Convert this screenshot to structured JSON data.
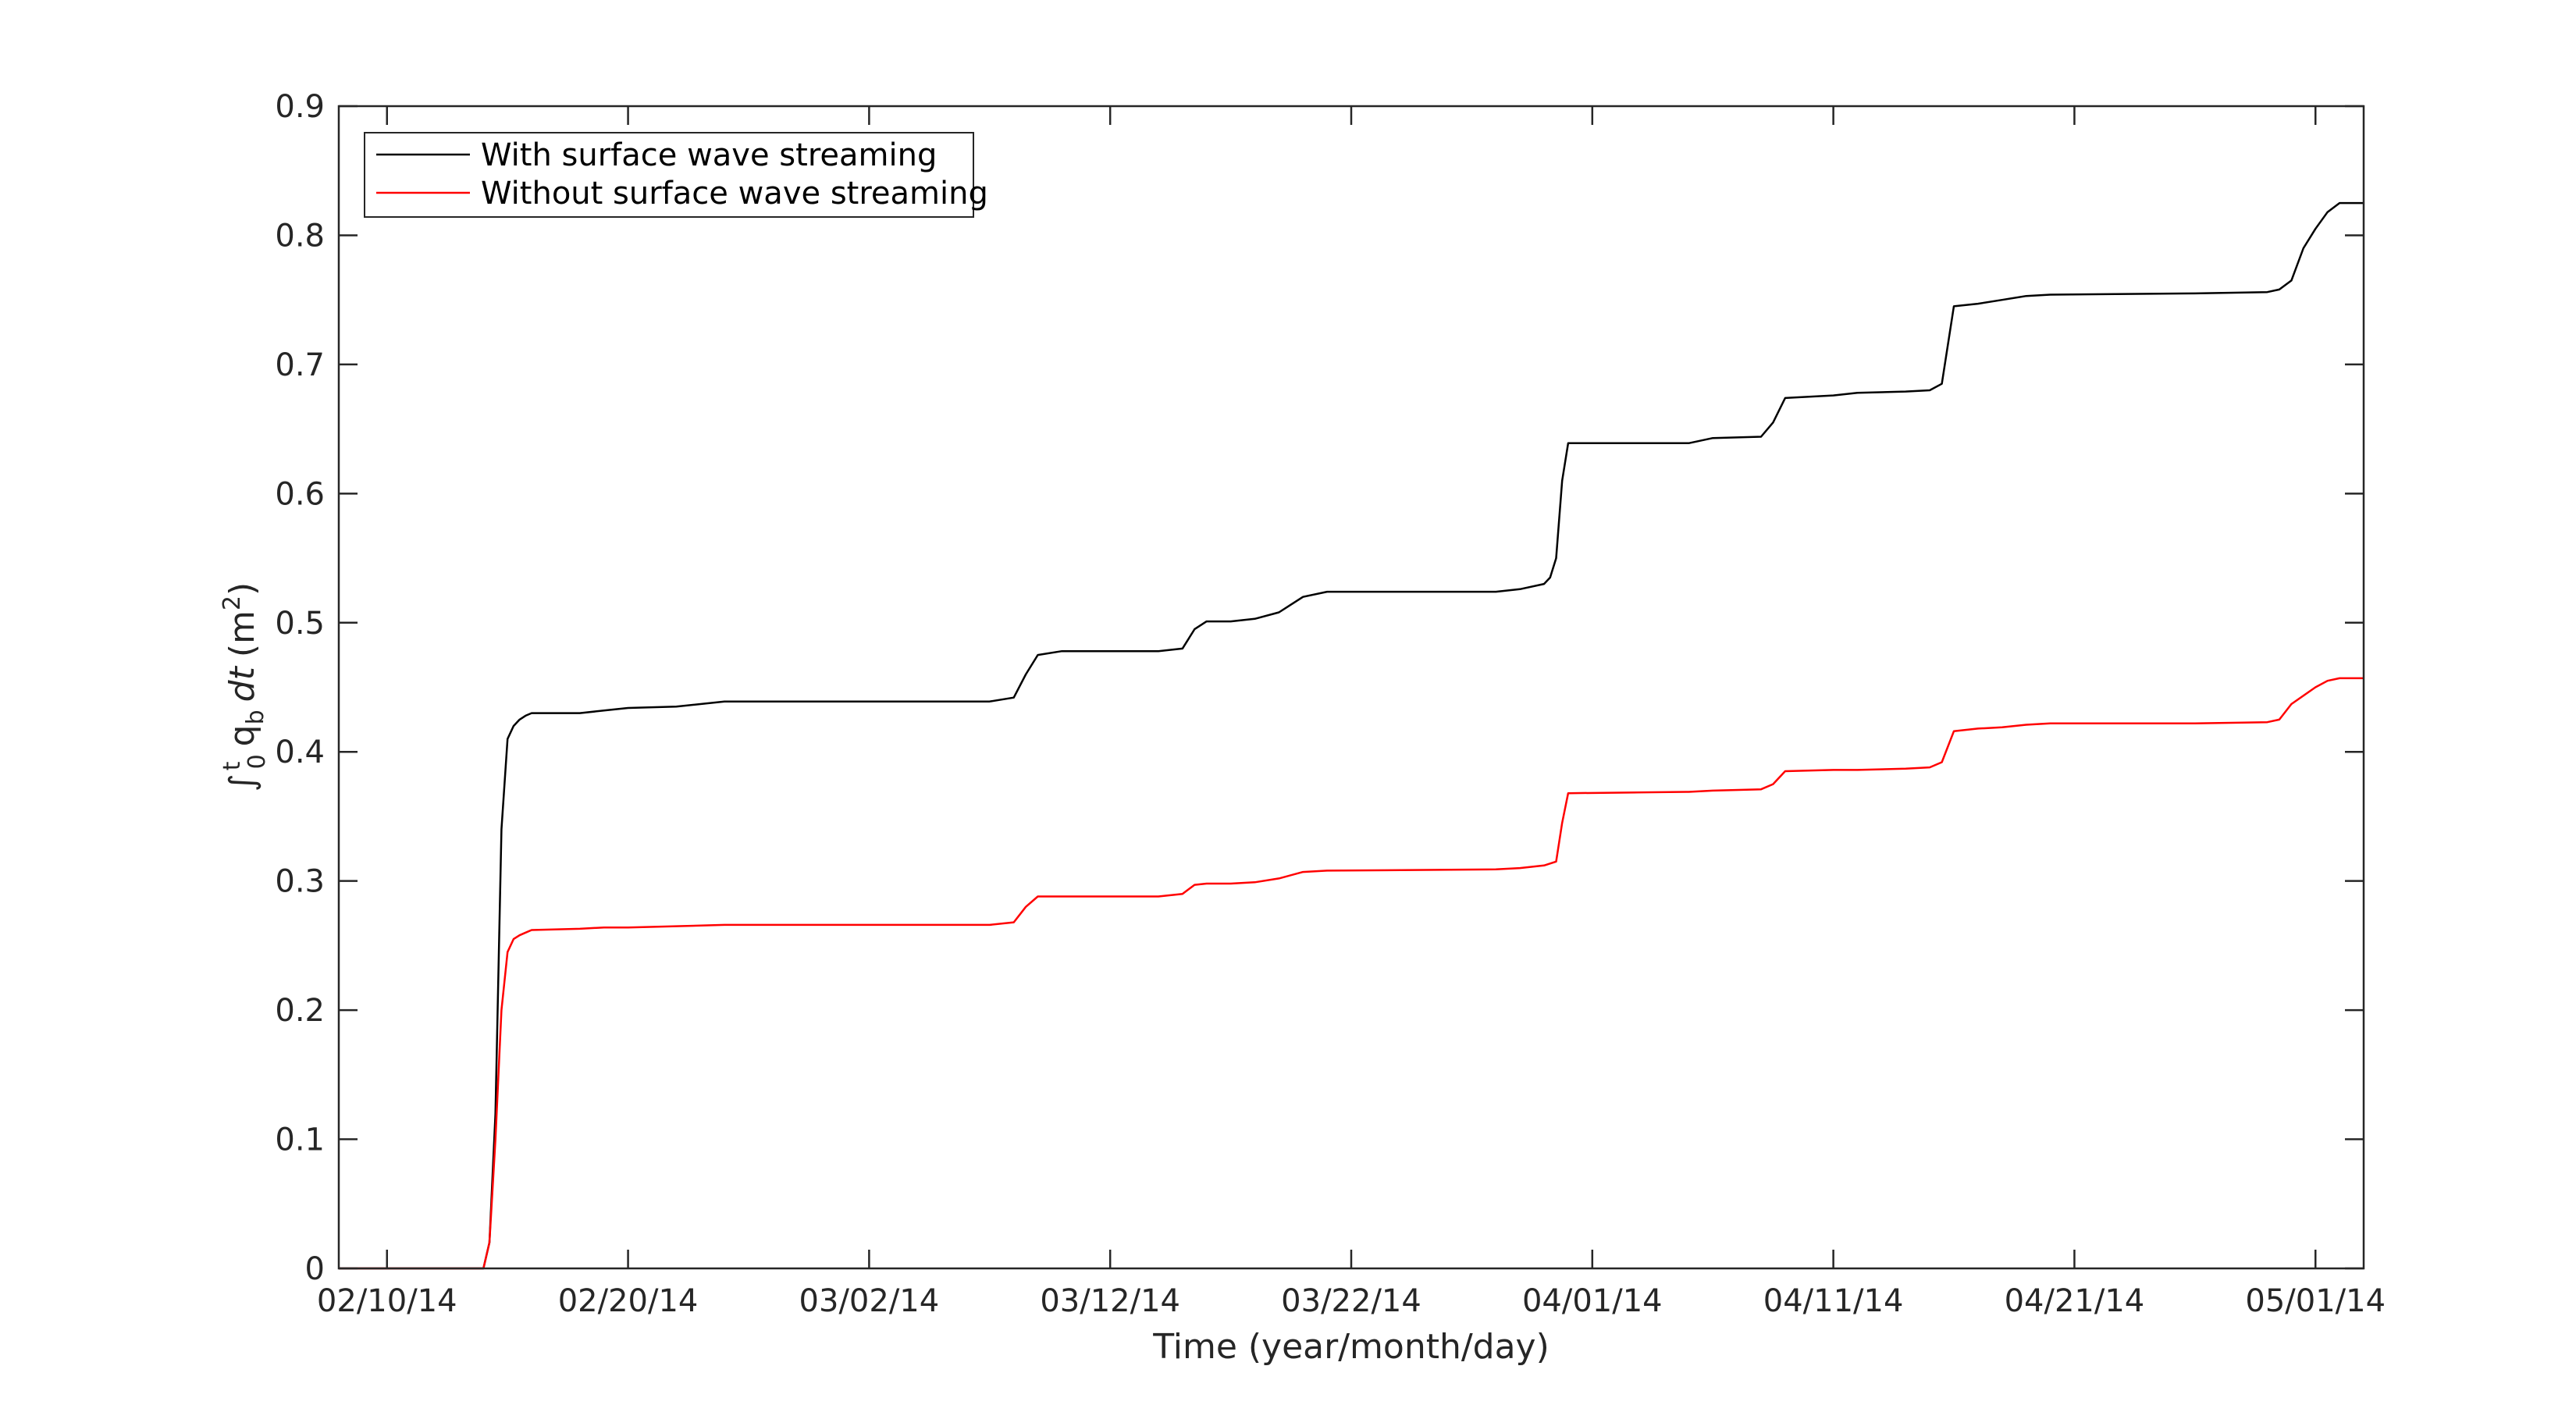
{
  "chart_data": {
    "type": "line",
    "xlabel": "Time (year/month/day)",
    "ylabel": {
      "integral": "∫",
      "upper": "t",
      "lower": "0",
      "q": "q",
      "q_sub": "b",
      "dt": "dt",
      "unit_open": "(m",
      "unit_sup": "2",
      "unit_close": ")"
    },
    "xlim": [
      "2014-02-08",
      "2014-05-03"
    ],
    "ylim": [
      0,
      0.9
    ],
    "grid": false,
    "x_ticks": [
      "2014-02-10",
      "2014-02-20",
      "2014-03-02",
      "2014-03-12",
      "2014-03-22",
      "2014-04-01",
      "2014-04-11",
      "2014-04-21",
      "2014-05-01"
    ],
    "x_tick_labels": [
      "02/10/14",
      "02/20/14",
      "03/02/14",
      "03/12/14",
      "03/22/14",
      "04/01/14",
      "04/11/14",
      "04/21/14",
      "05/01/14"
    ],
    "y_ticks": [
      0,
      0.1,
      0.2,
      0.3,
      0.4,
      0.5,
      0.6,
      0.7,
      0.8,
      0.9
    ],
    "y_tick_labels": [
      "0",
      "0.1",
      "0.2",
      "0.3",
      "0.4",
      "0.5",
      "0.6",
      "0.7",
      "0.8",
      "0.9"
    ],
    "legend_position": "top-left",
    "series": [
      {
        "name": "With surface wave streaming",
        "color": "#000000",
        "x": [
          "2014-02-08",
          "2014-02-10",
          "2014-02-12",
          "2014-02-14",
          "2014-02-14T06:00",
          "2014-02-14T12:00",
          "2014-02-14T18:00",
          "2014-02-15",
          "2014-02-15T06:00",
          "2014-02-15T12:00",
          "2014-02-15T18:00",
          "2014-02-16",
          "2014-02-16T12:00",
          "2014-02-17",
          "2014-02-18",
          "2014-02-19",
          "2014-02-20",
          "2014-02-22",
          "2014-02-24",
          "2014-03-01",
          "2014-03-07",
          "2014-03-08",
          "2014-03-08T12:00",
          "2014-03-09",
          "2014-03-10",
          "2014-03-14",
          "2014-03-15",
          "2014-03-15T12:00",
          "2014-03-16",
          "2014-03-17",
          "2014-03-18",
          "2014-03-19",
          "2014-03-20",
          "2014-03-21",
          "2014-03-28",
          "2014-03-29",
          "2014-03-30",
          "2014-03-30T06:00",
          "2014-03-30T12:00",
          "2014-03-30T18:00",
          "2014-03-31",
          "2014-04-05",
          "2014-04-06",
          "2014-04-08",
          "2014-04-08T12:00",
          "2014-04-09",
          "2014-04-11",
          "2014-04-12",
          "2014-04-14",
          "2014-04-15",
          "2014-04-15T12:00",
          "2014-04-16",
          "2014-04-17",
          "2014-04-18",
          "2014-04-19",
          "2014-04-20",
          "2014-04-26",
          "2014-04-29",
          "2014-04-29T12:00",
          "2014-04-30",
          "2014-04-30T12:00",
          "2014-05-01",
          "2014-05-01T12:00",
          "2014-05-02",
          "2014-05-03"
        ],
        "y": [
          0,
          0,
          0,
          0,
          0.02,
          0.12,
          0.34,
          0.41,
          0.42,
          0.425,
          0.428,
          0.43,
          0.43,
          0.43,
          0.43,
          0.432,
          0.434,
          0.435,
          0.439,
          0.439,
          0.439,
          0.442,
          0.46,
          0.475,
          0.478,
          0.478,
          0.48,
          0.495,
          0.501,
          0.501,
          0.503,
          0.508,
          0.52,
          0.524,
          0.524,
          0.526,
          0.53,
          0.535,
          0.55,
          0.61,
          0.639,
          0.639,
          0.643,
          0.644,
          0.655,
          0.674,
          0.676,
          0.678,
          0.679,
          0.68,
          0.685,
          0.745,
          0.747,
          0.75,
          0.753,
          0.754,
          0.755,
          0.756,
          0.758,
          0.765,
          0.79,
          0.805,
          0.818,
          0.825,
          0.825
        ]
      },
      {
        "name": "Without surface wave streaming",
        "color": "#ff0000",
        "x": [
          "2014-02-08",
          "2014-02-10",
          "2014-02-12",
          "2014-02-14",
          "2014-02-14T06:00",
          "2014-02-14T12:00",
          "2014-02-14T18:00",
          "2014-02-15",
          "2014-02-15T06:00",
          "2014-02-15T12:00",
          "2014-02-15T18:00",
          "2014-02-16",
          "2014-02-18",
          "2014-02-19",
          "2014-02-20",
          "2014-02-22",
          "2014-02-24",
          "2014-03-07",
          "2014-03-08",
          "2014-03-08T12:00",
          "2014-03-09",
          "2014-03-10",
          "2014-03-14",
          "2014-03-15",
          "2014-03-15T12:00",
          "2014-03-16",
          "2014-03-17",
          "2014-03-18",
          "2014-03-19",
          "2014-03-20",
          "2014-03-21",
          "2014-03-28",
          "2014-03-29",
          "2014-03-30",
          "2014-03-30T12:00",
          "2014-03-30T18:00",
          "2014-03-31",
          "2014-04-05",
          "2014-04-06",
          "2014-04-08",
          "2014-04-08T12:00",
          "2014-04-09",
          "2014-04-11",
          "2014-04-12",
          "2014-04-14",
          "2014-04-15",
          "2014-04-15T12:00",
          "2014-04-16",
          "2014-04-17",
          "2014-04-18",
          "2014-04-19",
          "2014-04-20",
          "2014-04-26",
          "2014-04-29",
          "2014-04-29T12:00",
          "2014-04-30",
          "2014-05-01",
          "2014-05-01T12:00",
          "2014-05-02",
          "2014-05-03"
        ],
        "y": [
          0,
          0,
          0,
          0,
          0.02,
          0.1,
          0.2,
          0.245,
          0.255,
          0.258,
          0.26,
          0.262,
          0.263,
          0.264,
          0.264,
          0.265,
          0.266,
          0.266,
          0.268,
          0.28,
          0.288,
          0.288,
          0.288,
          0.29,
          0.297,
          0.298,
          0.298,
          0.299,
          0.302,
          0.307,
          0.308,
          0.309,
          0.31,
          0.312,
          0.315,
          0.345,
          0.368,
          0.369,
          0.37,
          0.371,
          0.375,
          0.385,
          0.386,
          0.386,
          0.387,
          0.388,
          0.392,
          0.416,
          0.418,
          0.419,
          0.421,
          0.422,
          0.422,
          0.423,
          0.425,
          0.437,
          0.45,
          0.455,
          0.457,
          0.457
        ]
      }
    ]
  }
}
